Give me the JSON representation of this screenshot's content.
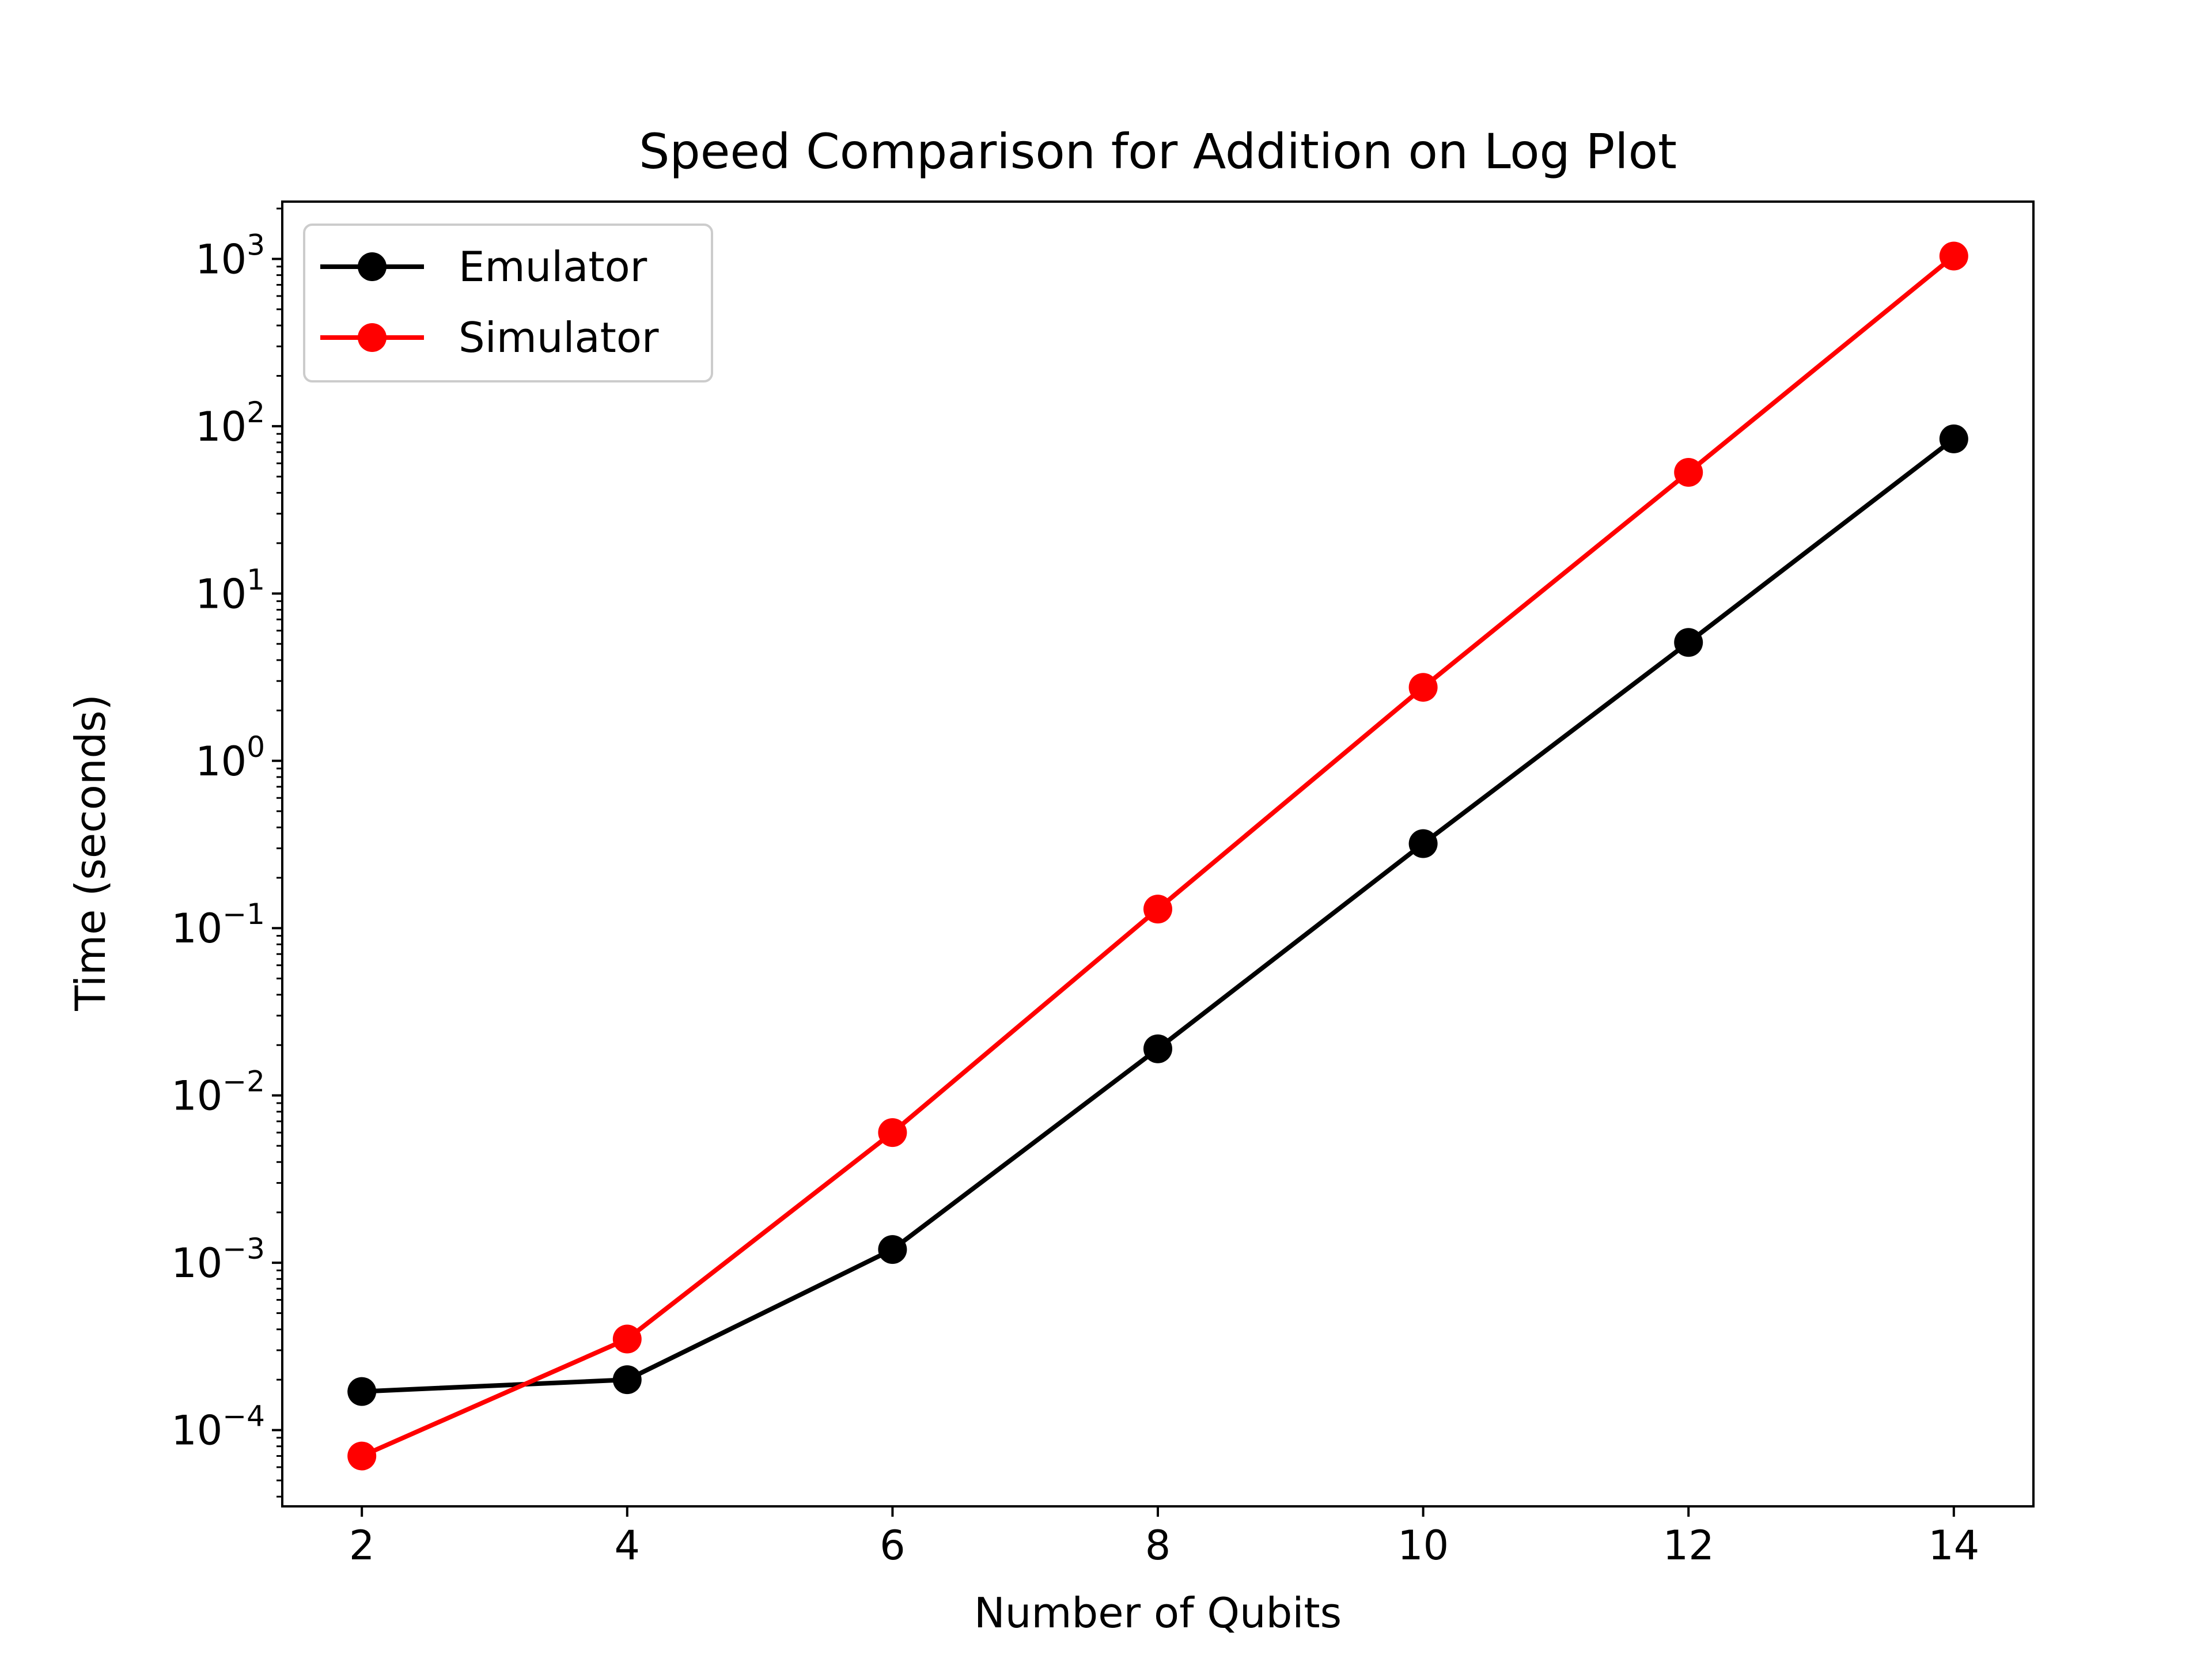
{
  "chart_data": {
    "type": "line",
    "title": "Speed Comparison for Addition on Log Plot",
    "xlabel": "Number of Qubits",
    "ylabel": "Time (seconds)",
    "yscale": "log",
    "xlim": [
      1.4,
      14.6
    ],
    "ylim": [
      3.5e-05,
      2200
    ],
    "xticks": [
      2,
      4,
      6,
      8,
      10,
      12,
      14
    ],
    "yticks": [
      {
        "value": 0.0001,
        "base": "10",
        "exp": "−4"
      },
      {
        "value": 0.001,
        "base": "10",
        "exp": "−3"
      },
      {
        "value": 0.01,
        "base": "10",
        "exp": "−2"
      },
      {
        "value": 0.1,
        "base": "10",
        "exp": "−1"
      },
      {
        "value": 1,
        "base": "10",
        "exp": "0"
      },
      {
        "value": 10,
        "base": "10",
        "exp": "1"
      },
      {
        "value": 100,
        "base": "10",
        "exp": "2"
      },
      {
        "value": 1000,
        "base": "10",
        "exp": "3"
      }
    ],
    "grid": false,
    "legend_position": "top-left",
    "x": [
      2,
      4,
      6,
      8,
      10,
      12,
      14
    ],
    "series": [
      {
        "name": "Emulator",
        "color": "#000000",
        "values": [
          0.00017,
          0.0002,
          0.0012,
          0.019,
          0.32,
          5.1,
          84
        ]
      },
      {
        "name": "Simulator",
        "color": "#ff0000",
        "values": [
          7e-05,
          0.00035,
          0.006,
          0.13,
          2.75,
          53,
          1040
        ]
      }
    ]
  }
}
